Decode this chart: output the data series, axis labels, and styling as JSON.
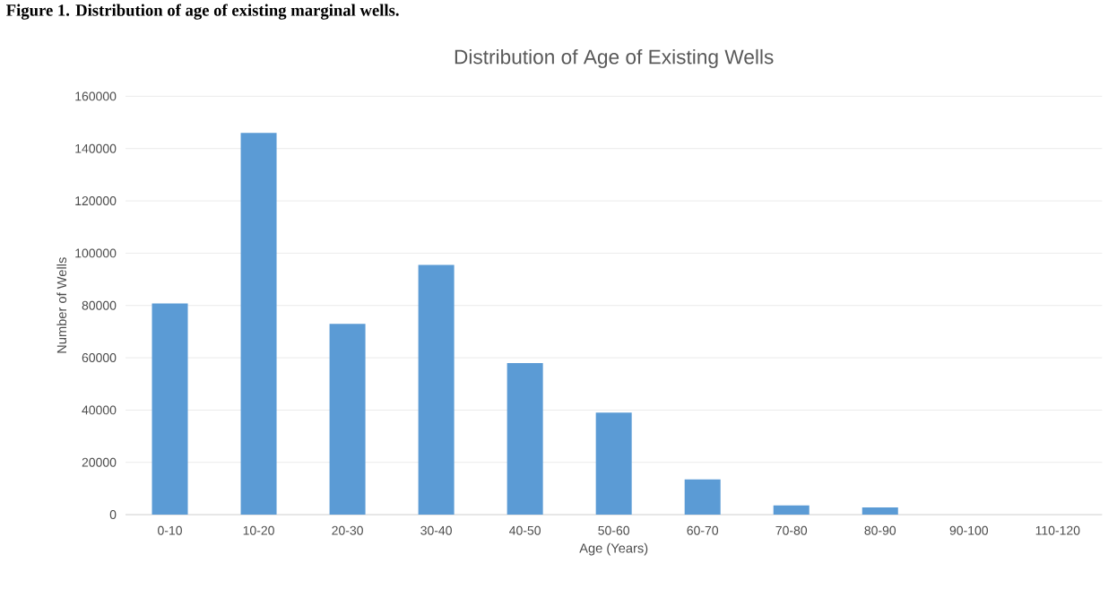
{
  "chart_data": {
    "type": "bar",
    "title": "Distribution of Age of Existing Wells",
    "xlabel": "Age (Years)",
    "ylabel": "Number of Wells",
    "annotations": [
      "Figure 1. Distribution of age of existing marginal wells."
    ],
    "categories": [
      "0-10",
      "10-20",
      "20-30",
      "30-40",
      "40-50",
      "50-60",
      "60-70",
      "70-80",
      "80-90",
      "90-100",
      "110-120"
    ],
    "values": [
      80800,
      146000,
      73000,
      95500,
      58000,
      39000,
      13500,
      3500,
      2800,
      0,
      0
    ],
    "color": "#5b9bd5",
    "ylim": [
      0,
      160000
    ],
    "yticks": [
      0,
      20000,
      40000,
      60000,
      80000,
      100000,
      120000,
      140000,
      160000
    ],
    "grid": "y"
  }
}
